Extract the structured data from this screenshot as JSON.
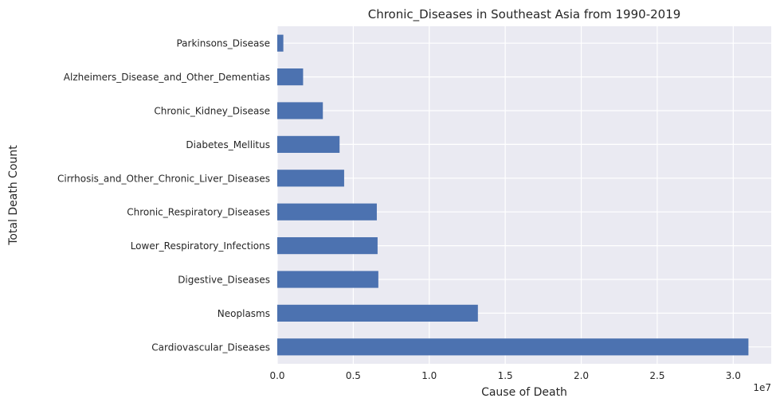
{
  "chart_data": {
    "type": "bar",
    "orientation": "horizontal",
    "title": "Chronic_Diseases in Southeast Asia from 1990-2019",
    "xlabel": "Cause of Death",
    "ylabel": "Total Death Count",
    "x_offset_label": "1e7",
    "xlim": [
      0,
      32500000
    ],
    "x_ticks": [
      0,
      5000000,
      10000000,
      15000000,
      20000000,
      25000000,
      30000000
    ],
    "x_tick_labels": [
      "0.0",
      "0.5",
      "1.0",
      "1.5",
      "2.0",
      "2.5",
      "3.0"
    ],
    "grid": true,
    "bar_color": "#4c72b0",
    "background_color": "#eaeaf2",
    "categories": [
      "Cardiovascular_Diseases",
      "Neoplasms",
      "Digestive_Diseases",
      "Lower_Respiratory_Infections",
      "Chronic_Respiratory_Diseases",
      "Cirrhosis_and_Other_Chronic_Liver_Diseases",
      "Diabetes_Mellitus",
      "Chronic_Kidney_Disease",
      "Alzheimers_Disease_and_Other_Dementias",
      "Parkinsons_Disease"
    ],
    "values": [
      31000000,
      13200000,
      6650000,
      6600000,
      6550000,
      4400000,
      4100000,
      3000000,
      1700000,
      400000
    ]
  }
}
